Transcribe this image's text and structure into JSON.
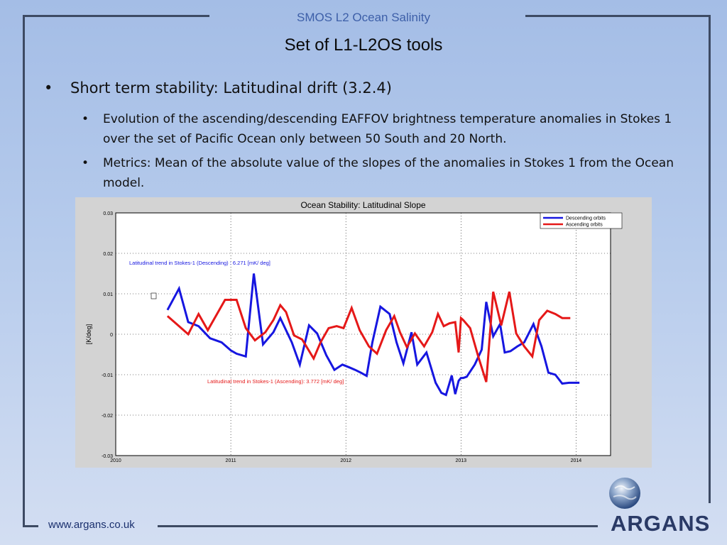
{
  "header": {
    "title": "SMOS L2 Ocean Salinity"
  },
  "slide": {
    "title": "Set of L1-L2OS tools"
  },
  "bullets": {
    "main": "Short term stability: Latitudinal drift (3.2.4)",
    "sub1": "Evolution of the ascending/descending EAFFOV brightness temperature anomalies in Stokes 1 over the set of Pacific Ocean only between 50 South and 20 North.",
    "sub2": "Metrics: Mean of the absolute value of the slopes of the anomalies in Stokes 1 from the Ocean model.",
    "symbol": "•"
  },
  "footer": {
    "url": "www.argans.co.uk"
  },
  "logo": {
    "text": "ARGANS"
  },
  "colors": {
    "descending": "#1616e0",
    "ascending": "#e51818",
    "frame": "#3d4a63",
    "header_text": "#3d5fa8"
  },
  "chart_data": {
    "type": "line",
    "title": "Ocean Stability: Latitudinal Slope",
    "xlabel": "",
    "ylabel": "[K/deg]",
    "xlim": [
      2010,
      2014.3
    ],
    "ylim": [
      -0.03,
      0.03
    ],
    "xticks": [
      "2010",
      "2011",
      "2012",
      "2013",
      "2014"
    ],
    "yticks": [
      "0.03",
      "0.02",
      "0.01",
      "0",
      "-0.01",
      "-0.02",
      "-0.03"
    ],
    "grid": true,
    "legend_position": "top-right",
    "annotations": [
      {
        "text": "Latitudinal trend in Stokes-1 (Descending)  : 6.271  [mK/ deg]",
        "series": "descending"
      },
      {
        "text": "Latitudinal trend in Stokes-1  (Ascending): 3.772  [mK/ deg]",
        "series": "ascending"
      }
    ],
    "series": [
      {
        "name": "Descending orbits",
        "key": "descending",
        "x": [
          2010.45,
          2010.55,
          2010.63,
          2010.72,
          2010.82,
          2010.92,
          2011.0,
          2011.05,
          2011.13,
          2011.2,
          2011.28,
          2011.37,
          2011.43,
          2011.53,
          2011.6,
          2011.68,
          2011.75,
          2011.83,
          2011.9,
          2011.97,
          2012.03,
          2012.08,
          2012.13,
          2012.18,
          2012.23,
          2012.3,
          2012.38,
          2012.44,
          2012.5,
          2012.57,
          2012.62,
          2012.7,
          2012.78,
          2012.83,
          2012.87,
          2012.92,
          2012.95,
          2012.98,
          2013.0,
          2013.02,
          2013.05,
          2013.12,
          2013.18,
          2013.22,
          2013.28,
          2013.34,
          2013.38,
          2013.43,
          2013.49,
          2013.55,
          2013.63,
          2013.7,
          2013.76,
          2013.82,
          2013.88,
          2013.94,
          2014.03
        ],
        "y": [
          0.006,
          0.0113,
          0.003,
          0.002,
          -0.001,
          -0.002,
          -0.004,
          -0.0048,
          -0.0055,
          0.015,
          -0.0025,
          0.0005,
          0.004,
          -0.002,
          -0.0075,
          0.0022,
          0.0002,
          -0.0052,
          -0.0088,
          -0.0075,
          -0.0082,
          -0.0088,
          -0.0095,
          -0.0103,
          -0.002,
          0.0068,
          0.005,
          -0.002,
          -0.0072,
          0.0005,
          -0.0075,
          -0.0045,
          -0.012,
          -0.0145,
          -0.015,
          -0.0102,
          -0.0148,
          -0.0115,
          -0.0108,
          -0.0108,
          -0.0105,
          -0.0075,
          -0.0038,
          0.008,
          -0.0005,
          0.0025,
          -0.0045,
          -0.0042,
          -0.003,
          -0.002,
          0.0025,
          -0.003,
          -0.0095,
          -0.01,
          -0.0122,
          -0.012,
          -0.012
        ]
      },
      {
        "name": "Ascending orbits",
        "key": "ascending",
        "x": [
          2010.45,
          2010.55,
          2010.63,
          2010.72,
          2010.8,
          2010.87,
          2010.95,
          2011.05,
          2011.13,
          2011.21,
          2011.3,
          2011.37,
          2011.43,
          2011.48,
          2011.55,
          2011.62,
          2011.72,
          2011.78,
          2011.85,
          2011.92,
          2011.98,
          2012.05,
          2012.12,
          2012.2,
          2012.27,
          2012.35,
          2012.42,
          2012.47,
          2012.53,
          2012.6,
          2012.68,
          2012.75,
          2012.8,
          2012.85,
          2012.9,
          2012.95,
          2012.98,
          2013.0,
          2013.02,
          2013.08,
          2013.15,
          2013.22,
          2013.28,
          2013.35,
          2013.42,
          2013.48,
          2013.55,
          2013.62,
          2013.68,
          2013.75,
          2013.82,
          2013.88,
          2013.95
        ],
        "y": [
          0.0045,
          0.002,
          0.0,
          0.005,
          0.001,
          0.0045,
          0.0085,
          0.0085,
          0.0015,
          -0.0015,
          0.0005,
          0.0035,
          0.0072,
          0.0055,
          -0.0003,
          -0.0013,
          -0.006,
          -0.002,
          0.0015,
          0.002,
          0.0015,
          0.0065,
          0.001,
          -0.003,
          -0.0048,
          0.001,
          0.0045,
          0.0005,
          -0.0032,
          0.0002,
          -0.003,
          0.0005,
          0.005,
          0.002,
          0.0027,
          0.003,
          -0.0045,
          0.004,
          0.0035,
          0.0015,
          -0.0055,
          -0.0118,
          0.0105,
          0.0022,
          0.0105,
          0.0002,
          -0.003,
          -0.0055,
          0.0035,
          0.0058,
          0.005,
          0.004,
          0.004
        ]
      }
    ]
  }
}
